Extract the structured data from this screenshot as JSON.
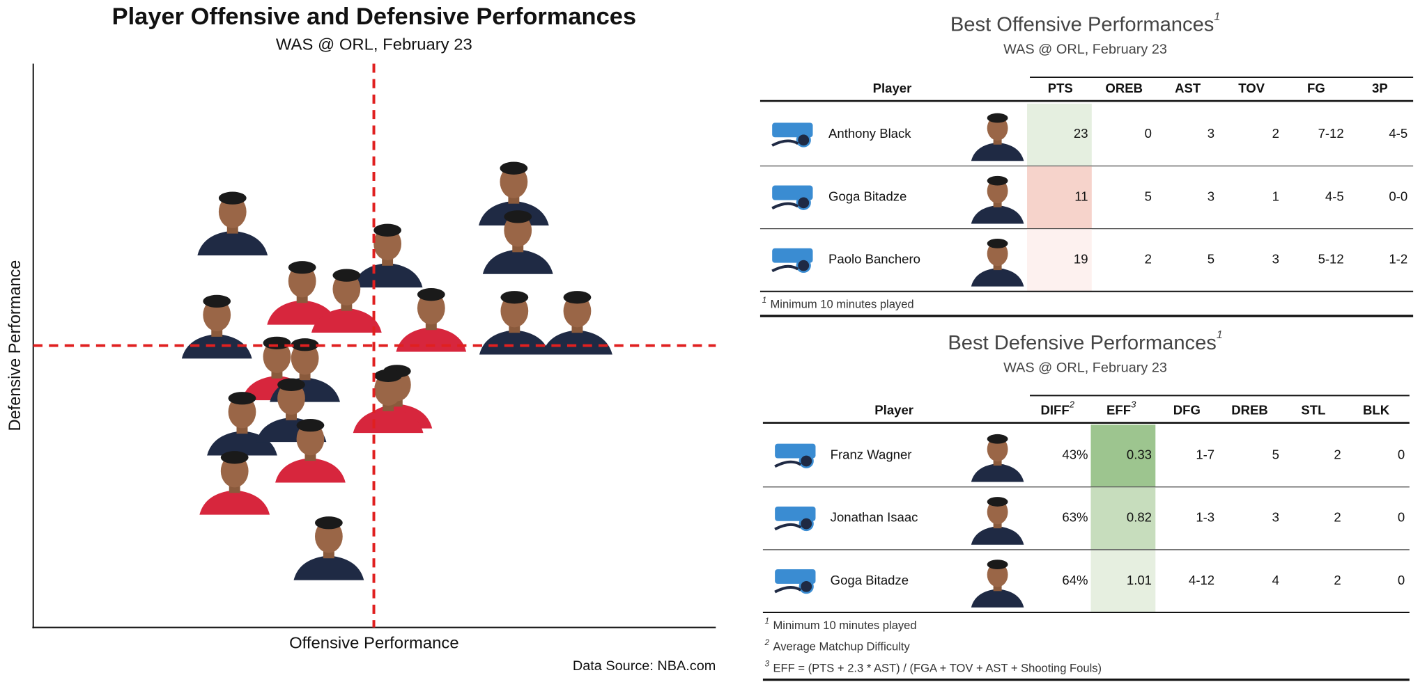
{
  "chart_data": {
    "type": "scatter",
    "title": "Player Offensive and Defensive Performances",
    "subtitle": "WAS @ ORL, February 23",
    "x_label": "Offensive Performance",
    "y_label": "Defensive Performance",
    "xlim": [
      0,
      100
    ],
    "ylim": [
      0,
      100
    ],
    "x": [
      29.2,
      70.4,
      71.0,
      51.9,
      39.4,
      45.9,
      58.3,
      70.5,
      79.7,
      26.9,
      35.7,
      39.8,
      53.3,
      52.0,
      30.6,
      37.8,
      40.6,
      29.5,
      43.3
    ],
    "values": [
      71.8,
      77.1,
      68.5,
      66.1,
      59.5,
      58.1,
      54.7,
      54.2,
      54.2,
      53.5,
      46.1,
      45.8,
      41.1,
      40.3,
      36.3,
      38.7,
      31.5,
      25.8,
      14.2
    ],
    "colors": [
      "#1f2a44",
      "#1f2a44",
      "#1f2a44",
      "#1f2a44",
      "#d7263d",
      "#d7263d",
      "#d7263d",
      "#1f2a44",
      "#1f2a44",
      "#1f2a44",
      "#d7263d",
      "#1f2a44",
      "#d7263d",
      "#d7263d",
      "#1f2a44",
      "#1f2a44",
      "#d7263d",
      "#d7263d",
      "#1f2a44"
    ],
    "x_reference": 49.9,
    "y_reference": 50,
    "reference_color": "#e02020",
    "source": "Data Source: NBA.com"
  },
  "offense": {
    "title": "Best Offensive Performances",
    "title_note": "1",
    "subtitle": "WAS @ ORL, February 23",
    "columns": [
      {
        "label": "Player"
      },
      {
        "label": "PTS"
      },
      {
        "label": "OREB"
      },
      {
        "label": "AST"
      },
      {
        "label": "TOV"
      },
      {
        "label": "FG"
      },
      {
        "label": "3P"
      }
    ],
    "rows": [
      [
        "Anthony Black",
        23,
        0,
        3,
        2,
        "7-12",
        "4-5"
      ],
      [
        "Goga Bitadze",
        11,
        5,
        3,
        1,
        "4-5",
        "0-0"
      ],
      [
        "Paolo Banchero",
        19,
        2,
        5,
        3,
        "5-12",
        "1-2"
      ]
    ],
    "highlight_column": 1,
    "highlight_colors": [
      "#e5efe0",
      "#f6d3cb",
      "#fdf1ef"
    ],
    "footnotes": [
      {
        "mark": "1",
        "text": "Minimum 10 minutes played"
      }
    ]
  },
  "defense": {
    "title": "Best Defensive Performances",
    "title_note": "1",
    "subtitle": "WAS @ ORL, February 23",
    "columns": [
      {
        "label": "Player"
      },
      {
        "label": "DIFF",
        "note": "2"
      },
      {
        "label": "EFF",
        "note": "3"
      },
      {
        "label": "DFG"
      },
      {
        "label": "DREB"
      },
      {
        "label": "STL"
      },
      {
        "label": "BLK"
      }
    ],
    "rows": [
      [
        "Franz Wagner",
        "43%",
        0.33,
        "1-7",
        5,
        2,
        0
      ],
      [
        "Jonathan Isaac",
        "63%",
        0.82,
        "1-3",
        3,
        2,
        0
      ],
      [
        "Goga Bitadze",
        "64%",
        1.01,
        "4-12",
        4,
        2,
        0
      ]
    ],
    "highlight_column": 2,
    "highlight_colors": [
      "#9dc58f",
      "#c7ddbd",
      "#e6efe0"
    ],
    "footnotes": [
      {
        "mark": "1",
        "text": "Minimum 10 minutes played"
      },
      {
        "mark": "2",
        "text": "Average Matchup Difficulty"
      },
      {
        "mark": "3",
        "text": "EFF = (PTS + 2.3 * AST) / (FGA + TOV + AST + Shooting Fouls)"
      }
    ]
  }
}
